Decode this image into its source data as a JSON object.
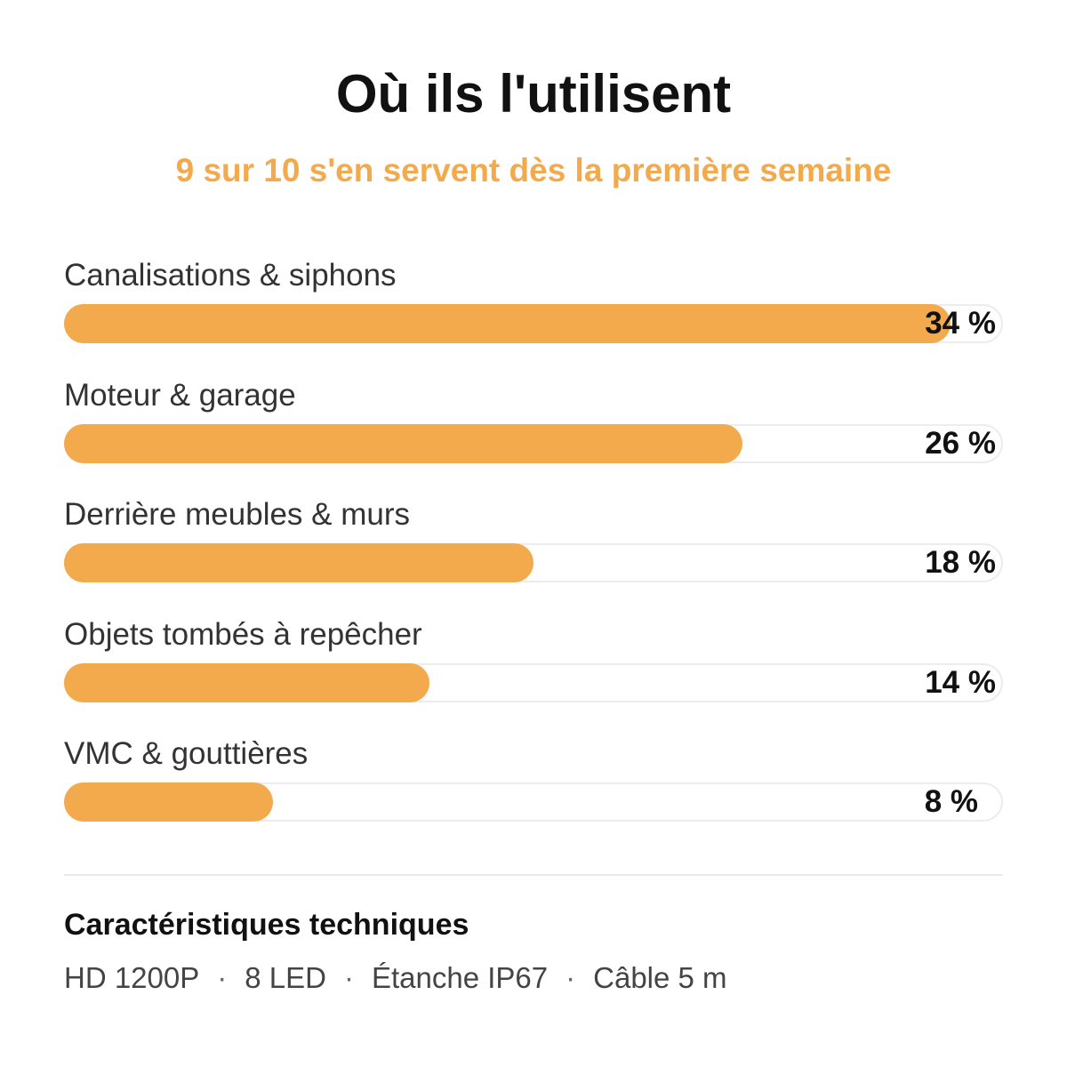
{
  "header": {
    "title": "Où ils l'utilisent",
    "subtitle": "9 sur 10 s'en servent dès la première semaine"
  },
  "colors": {
    "accent": "#f2aa4c",
    "track_border": "#ececec"
  },
  "chart_data": {
    "type": "bar",
    "orientation": "horizontal",
    "title": "Où ils l'utilisent",
    "subtitle": "9 sur 10 s'en servent dès la première semaine",
    "unit": "%",
    "xlim": [
      0,
      36
    ],
    "categories": [
      "Canalisations & siphons",
      "Moteur & garage",
      "Derrière meubles & murs",
      "Objets tombés à repêcher",
      "VMC & gouttières"
    ],
    "values": [
      34,
      26,
      18,
      14,
      8
    ],
    "value_labels": [
      "34 %",
      "26 %",
      "18 %",
      "14 %",
      "8 %"
    ],
    "grid": false
  },
  "specs": {
    "title": "Caractéristiques techniques",
    "items": [
      "HD 1200P",
      "8 LED",
      "Étanche IP67",
      "Câble 5 m"
    ],
    "separator": "·"
  }
}
